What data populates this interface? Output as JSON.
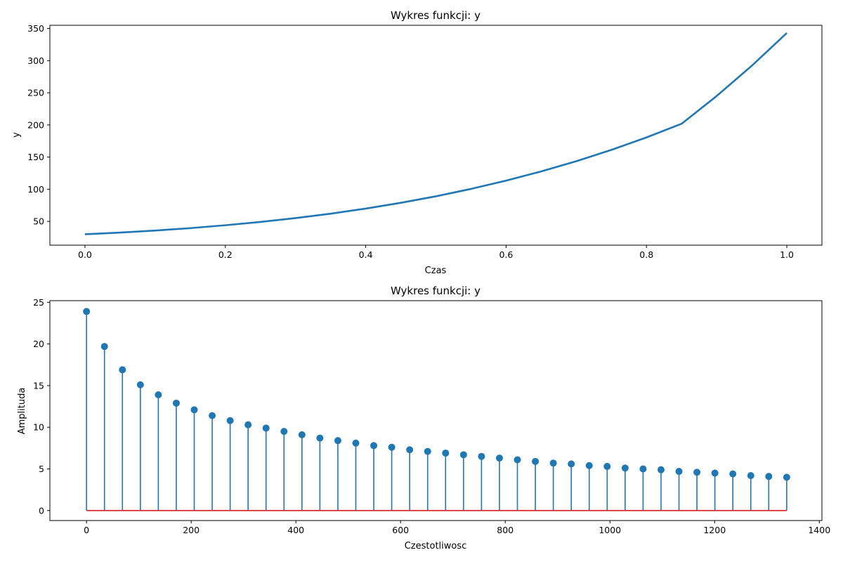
{
  "colors": {
    "series": "#1f77b4",
    "baseline": "#d62728",
    "axes": "#000000"
  },
  "chart_data": [
    {
      "type": "line",
      "title": "Wykres funkcji: y",
      "xlabel": "Czas",
      "ylabel": "y",
      "xlim": [
        -0.05,
        1.05
      ],
      "ylim": [
        13,
        355
      ],
      "xticks": [
        0.0,
        0.2,
        0.4,
        0.6,
        0.8,
        1.0
      ],
      "xtick_labels": [
        "0.0",
        "0.2",
        "0.4",
        "0.6",
        "0.8",
        "1.0"
      ],
      "yticks": [
        50,
        100,
        150,
        200,
        250,
        300,
        350
      ],
      "ytick_labels": [
        "50",
        "100",
        "150",
        "200",
        "250",
        "300",
        "350"
      ],
      "series": [
        {
          "x": [
            0.0,
            0.05,
            0.1,
            0.15,
            0.2,
            0.25,
            0.3,
            0.35,
            0.4,
            0.45,
            0.5,
            0.55,
            0.6,
            0.65,
            0.7,
            0.75,
            0.8,
            0.85,
            0.9,
            0.95,
            1.0
          ],
          "y": [
            30,
            32.6,
            35.7,
            39.5,
            44.0,
            49.1,
            55.1,
            62.0,
            69.9,
            78.9,
            89.0,
            100.5,
            113.4,
            127.7,
            143.6,
            161.2,
            180.6,
            201.8,
            245.0,
            292.0,
            343
          ]
        }
      ]
    },
    {
      "type": "stem",
      "title": "Wykres funkcji: y",
      "xlabel": "Czestotliwosc",
      "ylabel": "Amplituda",
      "xlim": [
        -70,
        1405
      ],
      "ylim": [
        -1.2,
        25.2
      ],
      "xticks": [
        0,
        200,
        400,
        600,
        800,
        1000,
        1200,
        1400
      ],
      "xtick_labels": [
        "0",
        "200",
        "400",
        "600",
        "800",
        "1000",
        "1200",
        "1400"
      ],
      "yticks": [
        0,
        5,
        10,
        15,
        20,
        25
      ],
      "ytick_labels": [
        "0",
        "5",
        "10",
        "15",
        "20",
        "25"
      ],
      "x": [
        0,
        34.3,
        68.6,
        102.9,
        137.2,
        171.5,
        205.8,
        240.1,
        274.4,
        308.7,
        343.0,
        377.3,
        411.6,
        445.9,
        480.2,
        514.5,
        548.8,
        583.1,
        617.4,
        651.7,
        686.0,
        720.3,
        754.6,
        788.9,
        823.2,
        857.5,
        891.8,
        926.1,
        960.4,
        994.7,
        1029.0,
        1063.3,
        1097.6,
        1131.9,
        1166.2,
        1200.5,
        1234.8,
        1269.1,
        1303.4,
        1337.7
      ],
      "values": [
        23.9,
        19.7,
        16.9,
        15.1,
        13.9,
        12.9,
        12.1,
        11.4,
        10.8,
        10.3,
        9.9,
        9.5,
        9.1,
        8.7,
        8.4,
        8.1,
        7.8,
        7.6,
        7.3,
        7.1,
        6.9,
        6.7,
        6.5,
        6.3,
        6.1,
        5.9,
        5.7,
        5.6,
        5.4,
        5.3,
        5.1,
        5.0,
        4.9,
        4.7,
        4.6,
        4.5,
        4.4,
        4.2,
        4.1,
        4.0
      ],
      "baseline": 0
    }
  ]
}
